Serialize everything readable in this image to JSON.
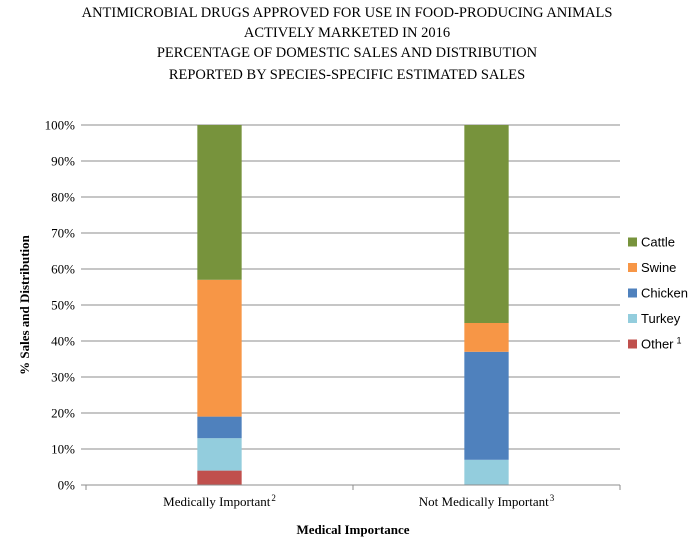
{
  "chart_data": {
    "type": "bar",
    "stacked": true,
    "title_lines": [
      "ANTIMICROBIAL DRUGS APPROVED FOR USE IN FOOD-PRODUCING ANIMALS",
      "ACTIVELY MARKETED IN 2016",
      "PERCENTAGE OF DOMESTIC SALES AND DISTRIBUTION",
      "REPORTED BY SPECIES-SPECIFIC ESTIMATED SALES"
    ],
    "xlabel": "Medical Importance",
    "ylabel": "% Sales and Distribution",
    "ylim": [
      0,
      100
    ],
    "yticks": [
      "0%",
      "10%",
      "20%",
      "30%",
      "40%",
      "50%",
      "60%",
      "70%",
      "80%",
      "90%",
      "100%"
    ],
    "categories": [
      {
        "label": "Medically Important",
        "footnote": "2"
      },
      {
        "label": "Not Medically Important",
        "footnote": "3"
      }
    ],
    "series": [
      {
        "name": "Other",
        "footnote": "1",
        "color": "#c0504d",
        "values": [
          4,
          0
        ]
      },
      {
        "name": "Turkey",
        "color": "#93cddd",
        "values": [
          9,
          7
        ]
      },
      {
        "name": "Chicken",
        "color": "#4f81bd",
        "values": [
          6,
          30
        ]
      },
      {
        "name": "Swine",
        "color": "#f79646",
        "values": [
          38,
          8
        ]
      },
      {
        "name": "Cattle",
        "color": "#77933c",
        "values": [
          43,
          55
        ]
      }
    ],
    "legend_order": [
      "Cattle",
      "Swine",
      "Chicken",
      "Turkey",
      "Other"
    ],
    "legend_position": "right",
    "grid": true
  }
}
